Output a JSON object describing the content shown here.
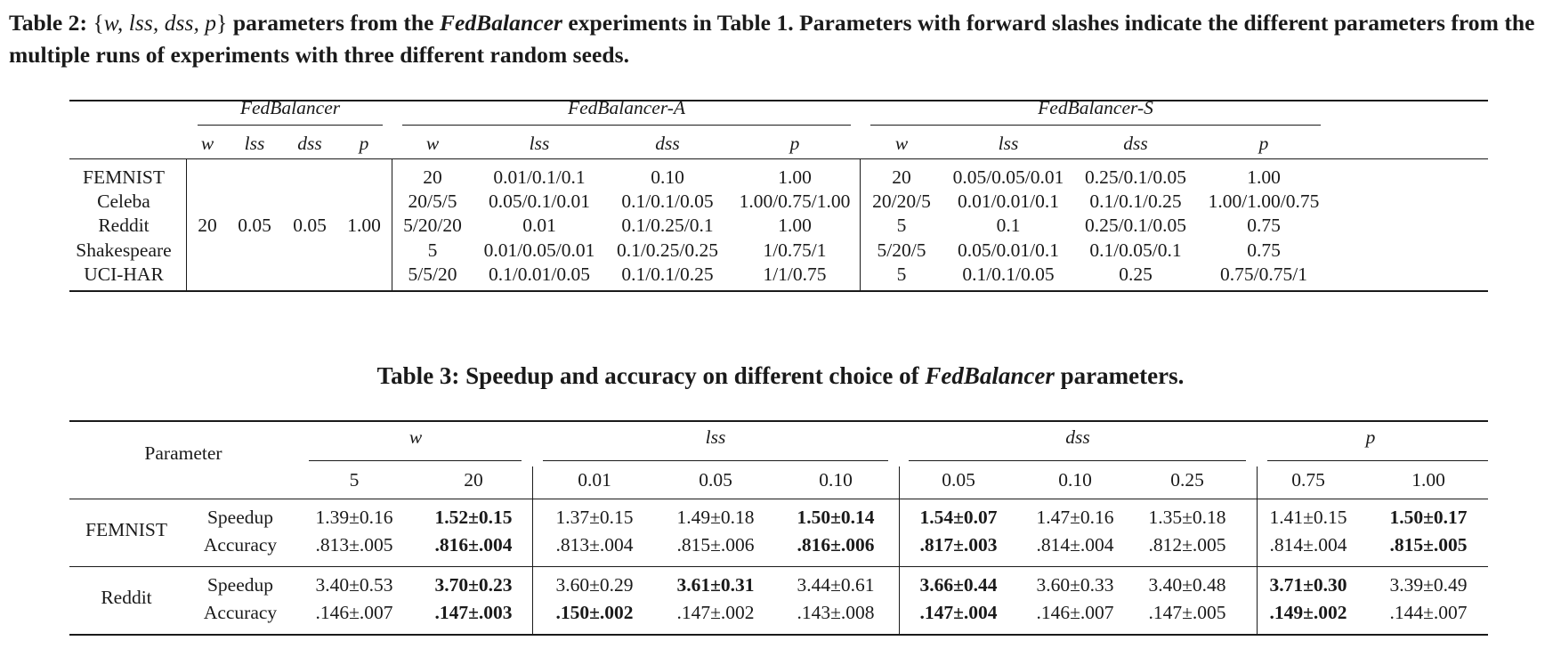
{
  "caption2": {
    "label": "Table 2:",
    "brace_open": "{",
    "vars": "w, lss, dss, p",
    "brace_close": "}",
    "text_a": "parameters from the",
    "fed": "FedBalancer",
    "text_b": "experiments in Table 1. Parameters with forward slashes indicate the different parameters from the multiple runs of experiments with three different random seeds."
  },
  "table2": {
    "groups": [
      "FedBalancer",
      "FedBalancer-A",
      "FedBalancer-S"
    ],
    "params": [
      "w",
      "lss",
      "dss",
      "p"
    ],
    "datasets": [
      "FEMNIST",
      "Celeba",
      "Reddit",
      "Shakespeare",
      "UCI-HAR"
    ],
    "fedbalancer_values": [
      "20",
      "0.05",
      "0.05",
      "1.00"
    ],
    "fedbalancer_a": [
      [
        "20",
        "0.01/0.1/0.1",
        "0.10",
        "1.00"
      ],
      [
        "20/5/5",
        "0.05/0.1/0.01",
        "0.1/0.1/0.05",
        "1.00/0.75/1.00"
      ],
      [
        "5/20/20",
        "0.01",
        "0.1/0.25/0.1",
        "1.00"
      ],
      [
        "5",
        "0.01/0.05/0.01",
        "0.1/0.25/0.25",
        "1/0.75/1"
      ],
      [
        "5/5/20",
        "0.1/0.01/0.05",
        "0.1/0.1/0.25",
        "1/1/0.75"
      ]
    ],
    "fedbalancer_s": [
      [
        "20",
        "0.05/0.05/0.01",
        "0.25/0.1/0.05",
        "1.00"
      ],
      [
        "20/20/5",
        "0.01/0.01/0.1",
        "0.1/0.1/0.25",
        "1.00/1.00/0.75"
      ],
      [
        "5",
        "0.1",
        "0.25/0.1/0.05",
        "0.75"
      ],
      [
        "5/20/5",
        "0.05/0.01/0.1",
        "0.1/0.05/0.1",
        "0.75"
      ],
      [
        "5",
        "0.1/0.1/0.05",
        "0.25",
        "0.75/0.75/1"
      ]
    ]
  },
  "caption3": {
    "text_a": "Table 3: Speedup and accuracy on different choice of",
    "fed": "FedBalancer",
    "text_b": "parameters."
  },
  "table3": {
    "header_label": "Parameter",
    "groups": [
      "w",
      "lss",
      "dss",
      "p"
    ],
    "subheaders": [
      "5",
      "20",
      "0.01",
      "0.05",
      "0.10",
      "0.05",
      "0.10",
      "0.25",
      "0.75",
      "1.00"
    ],
    "datasets": [
      {
        "name": "FEMNIST",
        "rows": [
          {
            "metric": "Speedup",
            "values": [
              "1.39±0.16",
              "1.52±0.15",
              "1.37±0.15",
              "1.49±0.18",
              "1.50±0.14",
              "1.54±0.07",
              "1.47±0.16",
              "1.35±0.18",
              "1.41±0.15",
              "1.50±0.17"
            ],
            "bold": [
              false,
              true,
              false,
              false,
              true,
              true,
              false,
              false,
              false,
              true
            ]
          },
          {
            "metric": "Accuracy",
            "values": [
              ".813±.005",
              ".816±.004",
              ".813±.004",
              ".815±.006",
              ".816±.006",
              ".817±.003",
              ".814±.004",
              ".812±.005",
              ".814±.004",
              ".815±.005"
            ],
            "bold": [
              false,
              true,
              false,
              false,
              true,
              true,
              false,
              false,
              false,
              true
            ]
          }
        ]
      },
      {
        "name": "Reddit",
        "rows": [
          {
            "metric": "Speedup",
            "values": [
              "3.40±0.53",
              "3.70±0.23",
              "3.60±0.29",
              "3.61±0.31",
              "3.44±0.61",
              "3.66±0.44",
              "3.60±0.33",
              "3.40±0.48",
              "3.71±0.30",
              "3.39±0.49"
            ],
            "bold": [
              false,
              true,
              false,
              true,
              false,
              true,
              false,
              false,
              true,
              false
            ]
          },
          {
            "metric": "Accuracy",
            "values": [
              ".146±.007",
              ".147±.003",
              ".150±.002",
              ".147±.002",
              ".143±.008",
              ".147±.004",
              ".146±.007",
              ".147±.005",
              ".149±.002",
              ".144±.007"
            ],
            "bold": [
              false,
              true,
              true,
              false,
              false,
              true,
              false,
              false,
              true,
              false
            ]
          }
        ]
      }
    ]
  }
}
